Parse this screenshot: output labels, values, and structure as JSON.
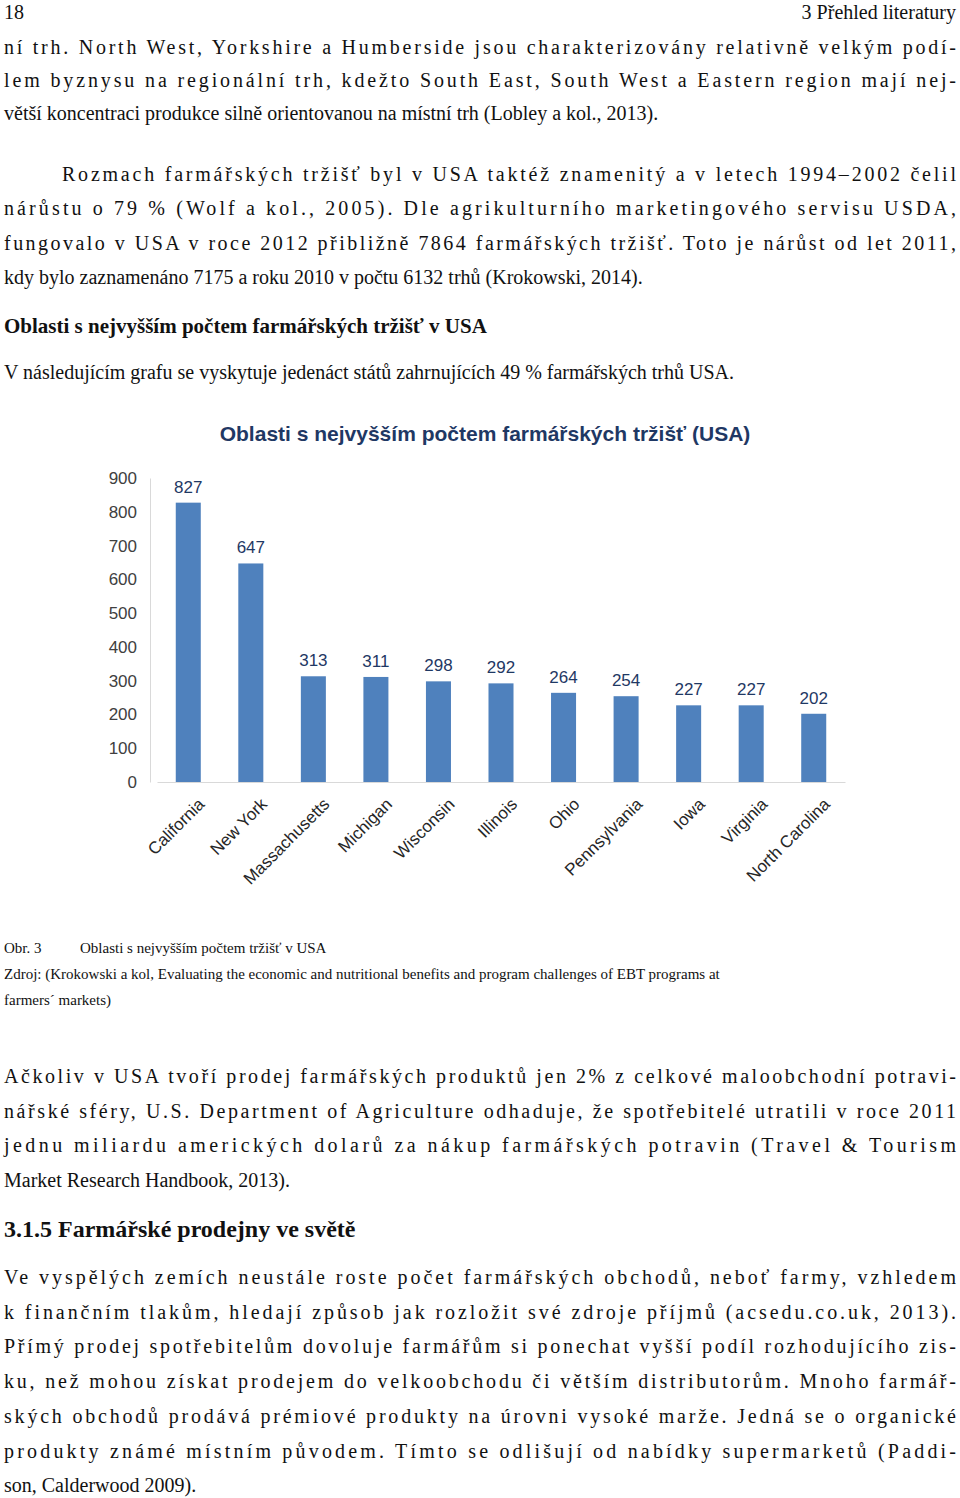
{
  "header": {
    "page_number": "18",
    "section": "3 Přehled literatury"
  },
  "body_top": {
    "paragraphs": [
      [
        "ní trh. North West, Yorkshire a Humberside jsou charakterizovány relativně velkým podí-",
        "lem byznysu na regionální trh, kdežto South East, South West a Eastern region mají nej-",
        "větší koncentraci produkce silně orientovanou na místní trh (Lobley a kol., 2013)."
      ],
      [
        "Rozmach farmářských tržišť byl v USA taktéž znamenitý a v letech 1994–2002 čelil",
        "nárůstu o 79 % (Wolf a kol., 2005). Dle agrikulturního marketingového servisu USDA,",
        "fungovalo v USA v roce 2012 přibližně 7864 farmářských tržišť. Toto je nárůst od let 2011,",
        "kdy bylo zaznamenáno 7175 a roku 2010 v počtu 6132 trhů (Krokowski, 2014)."
      ]
    ]
  },
  "subheading": "Oblasti s nejvyšším počtem farmářských tržišť v USA",
  "intro": "V následujícím grafu se vyskytuje jedenáct států zahrnujících 49 % farmářských trhů USA.",
  "chart_data": {
    "type": "bar",
    "title": "Oblasti s nejvyšším počtem farmářských tržišť (USA)",
    "categories": [
      "California",
      "New York",
      "Massachusetts",
      "Michigan",
      "Wisconsin",
      "Illinois",
      "Ohio",
      "Pennsylvania",
      "Iowa",
      "Virginia",
      "North Carolina"
    ],
    "values": [
      827,
      647,
      313,
      311,
      298,
      292,
      264,
      254,
      227,
      227,
      202
    ],
    "color": "#4f81bd",
    "ylim": [
      0,
      900
    ],
    "yticks": [
      0,
      100,
      200,
      300,
      400,
      500,
      600,
      700,
      800,
      900
    ],
    "grid": false,
    "data_labels": true
  },
  "caption": {
    "number": "Obr. 3",
    "text": "Oblasti s nejvyšším počtem tržišť v USA",
    "source": [
      "Zdroj: (Krokowski a kol, Evaluating the economic and nutritional benefits and program challenges of EBT programs at",
      "farmers´ markets)"
    ]
  },
  "body_bottom": {
    "paragraphs": [
      [
        "Ačkoliv v USA tvoří prodej farmářských produktů jen 2% z celkové maloobchodní potravi-",
        "nářské sféry, U.S. Department of Agriculture odhaduje, že spotřebitelé utratili v roce 2011",
        "jednu miliardu amerických dolarů za nákup farmářských potravin (Travel & Tourism",
        "Market Research Handbook, 2013)."
      ]
    ]
  },
  "section_heading": "3.1.5 Farmářské prodejny ve světě",
  "section_body": {
    "paragraphs": [
      [
        "Ve vyspělých zemích neustále roste počet farmářských obchodů, neboť farmy, vzhledem",
        "k finančním tlakům, hledají způsob jak rozložit své zdroje příjmů (acsedu.co.uk, 2013).",
        "Přímý prodej spotřebitelům dovoluje farmářům si ponechat vyšší podíl rozhodujícího zis-",
        "ku, než mohou získat prodejem do velkoobchodu či větším distributorům. Mnoho farmář-",
        "ských obchodů prodává prémiové produkty na úrovni vysoké marže. Jedná se o organické",
        "produkty známé místním původem. Tímto se odlišují od nabídky supermarketů (Paddi-",
        "son, Calderwood 2009)."
      ]
    ]
  }
}
